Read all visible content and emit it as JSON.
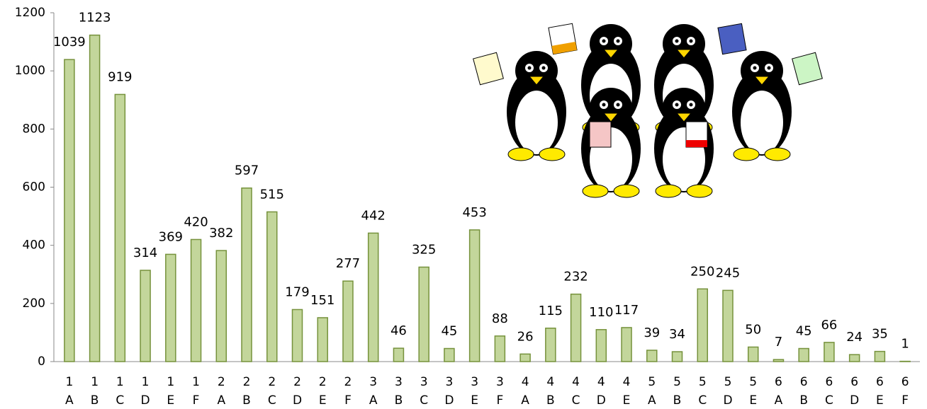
{
  "chart_data": {
    "type": "bar",
    "categories": [
      [
        "1",
        "A"
      ],
      [
        "1",
        "B"
      ],
      [
        "1",
        "C"
      ],
      [
        "1",
        "D"
      ],
      [
        "1",
        "E"
      ],
      [
        "1",
        "F"
      ],
      [
        "2",
        "A"
      ],
      [
        "2",
        "B"
      ],
      [
        "2",
        "C"
      ],
      [
        "2",
        "D"
      ],
      [
        "2",
        "E"
      ],
      [
        "2",
        "F"
      ],
      [
        "3",
        "A"
      ],
      [
        "3",
        "B"
      ],
      [
        "3",
        "C"
      ],
      [
        "3",
        "D"
      ],
      [
        "3",
        "E"
      ],
      [
        "3",
        "F"
      ],
      [
        "4",
        "A"
      ],
      [
        "4",
        "B"
      ],
      [
        "4",
        "C"
      ],
      [
        "4",
        "D"
      ],
      [
        "4",
        "E"
      ],
      [
        "5",
        "A"
      ],
      [
        "5",
        "B"
      ],
      [
        "5",
        "C"
      ],
      [
        "5",
        "D"
      ],
      [
        "5",
        "E"
      ],
      [
        "6",
        "A"
      ],
      [
        "6",
        "B"
      ],
      [
        "6",
        "C"
      ],
      [
        "6",
        "D"
      ],
      [
        "6",
        "E"
      ],
      [
        "6",
        "F"
      ]
    ],
    "values": [
      1039,
      1123,
      919,
      314,
      369,
      420,
      382,
      597,
      515,
      179,
      151,
      277,
      442,
      46,
      325,
      45,
      453,
      88,
      26,
      115,
      232,
      110,
      117,
      39,
      34,
      250,
      245,
      50,
      7,
      45,
      66,
      24,
      35,
      1
    ],
    "color": "#c3d69b",
    "ylim": [
      0,
      1200
    ],
    "yticks": [
      0,
      200,
      400,
      600,
      800,
      1000,
      1200
    ]
  }
}
